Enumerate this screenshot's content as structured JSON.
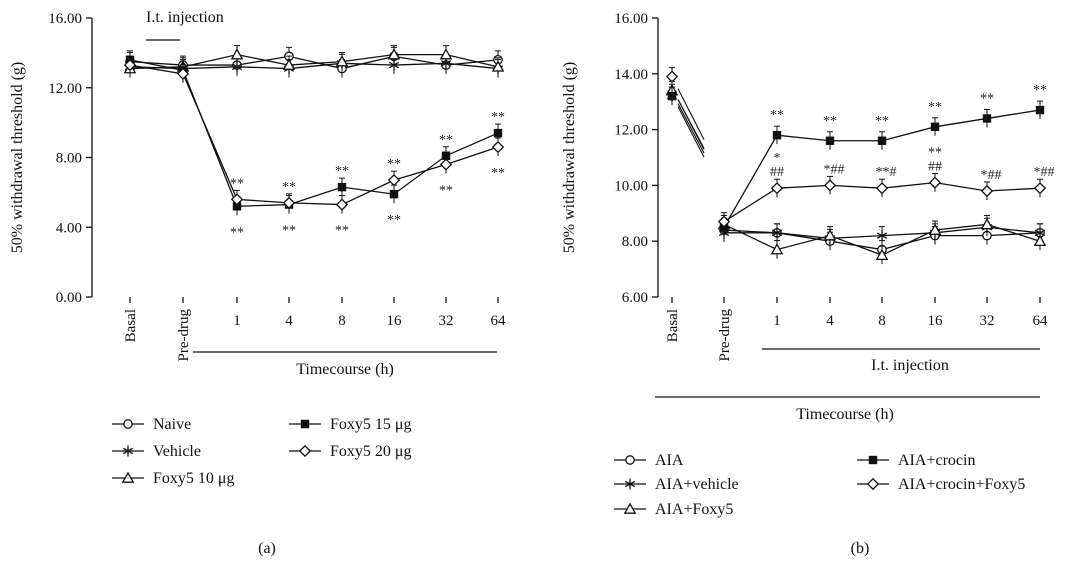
{
  "chart_data": [
    {
      "type": "line",
      "panel_label": "(a)",
      "ylabel": "50% withdrawal threshold (g)",
      "xlabel": "Timecourse (h)",
      "ylim": [
        0,
        16
      ],
      "yticks": [
        "0.00",
        "4.00",
        "8.00",
        "12.00",
        "16.00"
      ],
      "categories": [
        "Basal",
        "Pre-drug",
        "1",
        "4",
        "8",
        "16",
        "32",
        "64"
      ],
      "annotation": "I.t. injection",
      "series": [
        {
          "name": "Naive",
          "marker": "circle",
          "values": [
            13.5,
            13.3,
            13.3,
            13.8,
            13.1,
            13.8,
            13.3,
            13.6
          ]
        },
        {
          "name": "Vehicle",
          "marker": "star",
          "values": [
            13.2,
            13.1,
            13.2,
            13.1,
            13.4,
            13.3,
            13.4,
            13.1
          ]
        },
        {
          "name": "Foxy5 10 μg",
          "marker": "triangle",
          "values": [
            13.1,
            13.2,
            13.9,
            13.3,
            13.5,
            13.9,
            13.9,
            13.2
          ]
        },
        {
          "name": "Foxy5 15 μg",
          "marker": "square",
          "values": [
            13.6,
            13.0,
            5.2,
            5.3,
            6.3,
            5.9,
            8.1,
            9.4
          ]
        },
        {
          "name": "Foxy5 20 μg",
          "marker": "diamond",
          "values": [
            13.3,
            12.8,
            5.6,
            5.4,
            5.3,
            6.7,
            7.6,
            8.6
          ]
        }
      ],
      "significance": "**"
    },
    {
      "type": "line",
      "panel_label": "(b)",
      "ylabel": "50% withdrawal threshold (g)",
      "xlabel": "Timecourse (h)",
      "ylim": [
        6,
        16
      ],
      "yticks": [
        "6.00",
        "8.00",
        "10.00",
        "12.00",
        "14.00",
        "16.00"
      ],
      "categories": [
        "Basal",
        "Pre-drug",
        "1",
        "4",
        "8",
        "16",
        "32",
        "64"
      ],
      "annotation": "I.t. injection",
      "series": [
        {
          "name": "AIA",
          "marker": "circle",
          "values": [
            13.3,
            8.4,
            8.3,
            8.0,
            7.7,
            8.2,
            8.2,
            8.3
          ]
        },
        {
          "name": "AIA+vehicle",
          "marker": "star",
          "values": [
            13.2,
            8.3,
            8.3,
            8.1,
            8.2,
            8.3,
            8.5,
            8.3
          ]
        },
        {
          "name": "AIA+Foxy5",
          "marker": "triangle",
          "values": [
            13.4,
            8.6,
            7.7,
            8.2,
            7.5,
            8.4,
            8.6,
            8.0
          ]
        },
        {
          "name": "AIA+crocin",
          "marker": "square",
          "values": [
            13.2,
            8.5,
            11.8,
            11.6,
            11.6,
            12.1,
            12.4,
            12.7
          ]
        },
        {
          "name": "AIA+crocin+Foxy5",
          "marker": "diamond",
          "values": [
            13.9,
            8.7,
            9.9,
            10.0,
            9.9,
            10.1,
            9.8,
            9.9
          ]
        }
      ],
      "crocin_marks": [
        "**",
        "**",
        "**",
        "**",
        "**",
        "**"
      ],
      "crocin_foxy5_marks": [
        "*\n##",
        "*##",
        "**#",
        "**\n##",
        "*##",
        "*##"
      ]
    }
  ]
}
